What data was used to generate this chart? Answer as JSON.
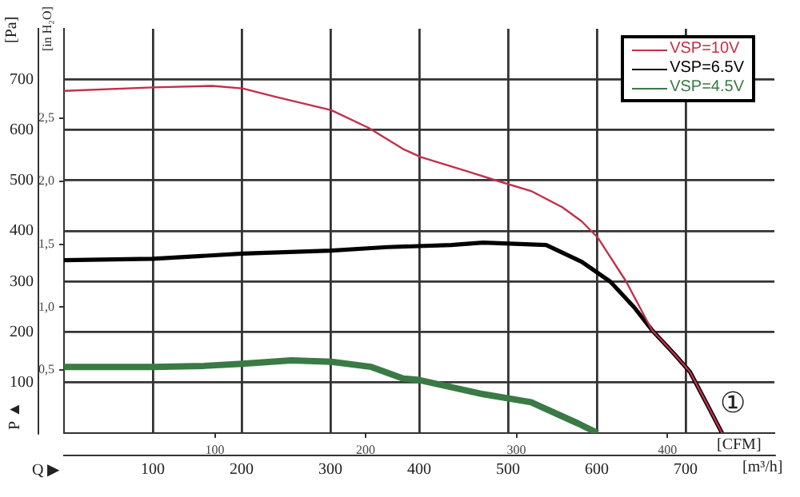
{
  "chart_data": {
    "type": "line",
    "xlabel": "[m³/h]",
    "x2label": "[CFM]",
    "ylabel": "[Pa]",
    "y2label": "[in H₂O]",
    "xlim": [
      0,
      800
    ],
    "xticks": [
      100,
      200,
      300,
      400,
      500,
      600,
      700
    ],
    "x2lim": [
      0,
      471
    ],
    "x2ticks": [
      100,
      200,
      300,
      400
    ],
    "ylim": [
      0,
      800
    ],
    "yticks": [
      100,
      200,
      300,
      400,
      500,
      600,
      700
    ],
    "y2lim": [
      0,
      3.21
    ],
    "y2ticks": [
      {
        "value": 0.5,
        "label": "0,5"
      },
      {
        "value": 1.0,
        "label": "1,0"
      },
      {
        "value": 1.5,
        "label": "1,5"
      },
      {
        "value": 2.0,
        "label": "2,0"
      },
      {
        "value": 2.5,
        "label": "2,5"
      }
    ],
    "grid": true,
    "legend": "top right",
    "marker": "none",
    "line_style": "solid",
    "annotations": [
      "P ▲",
      "Q ▶",
      "①"
    ],
    "series": [
      {
        "name": "VSP=10V",
        "color": "#c0304a",
        "x": [
          0,
          100,
          167,
          201,
          239,
          301,
          343,
          382,
          402,
          454,
          490,
          526,
          561,
          583,
          601,
          633,
          662,
          687,
          705,
          723,
          741
        ],
        "values": [
          677,
          684,
          687,
          682,
          665,
          639,
          604,
          562,
          546,
          518,
          498,
          479,
          447,
          419,
          387,
          300,
          204,
          157,
          121,
          61,
          0
        ]
      },
      {
        "name": "VSP=6.5V",
        "color": "#000000",
        "x": [
          0,
          100,
          201,
          301,
          364,
          436,
          472,
          543,
          583,
          615,
          642,
          662,
          687,
          705,
          723,
          741
        ],
        "values": [
          342,
          345,
          355,
          361,
          368,
          372,
          377,
          372,
          339,
          300,
          249,
          204,
          157,
          121,
          61,
          0
        ]
      },
      {
        "name": "VSP=4.5V",
        "color": "#3a7a45",
        "x": [
          0,
          100,
          158,
          201,
          256,
          301,
          346,
          382,
          400,
          472,
          526,
          579,
          601
        ],
        "values": [
          131,
          131,
          133,
          137,
          144,
          141,
          131,
          108,
          105,
          77,
          61,
          19,
          0
        ]
      }
    ]
  }
}
